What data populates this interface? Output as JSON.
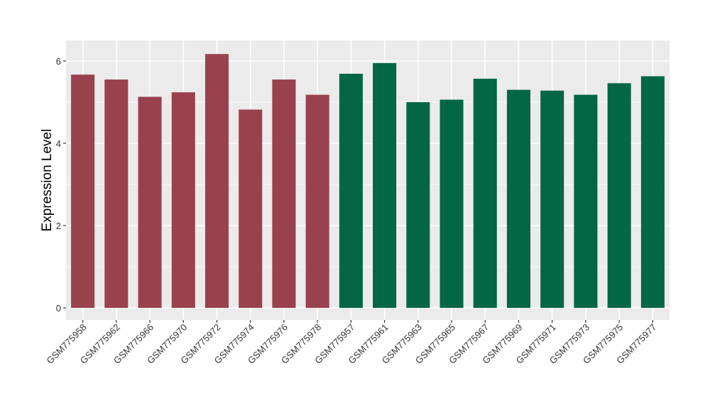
{
  "chart_data": {
    "type": "bar",
    "title": "",
    "xlabel": "",
    "ylabel": "Expression Level",
    "ylim": [
      -0.3,
      6.5
    ],
    "yticks": [
      0,
      2,
      4,
      6
    ],
    "grid": true,
    "legend": "none",
    "categories": [
      "GSM775958",
      "GSM775962",
      "GSM775966",
      "GSM775970",
      "GSM775972",
      "GSM775974",
      "GSM775976",
      "GSM775978",
      "GSM775957",
      "GSM775961",
      "GSM775963",
      "GSM775965",
      "GSM775967",
      "GSM775969",
      "GSM775971",
      "GSM775973",
      "GSM775975",
      "GSM775977"
    ],
    "values": [
      5.67,
      5.55,
      5.13,
      5.24,
      6.17,
      4.82,
      5.55,
      5.18,
      5.69,
      5.95,
      5.0,
      5.06,
      5.57,
      5.3,
      5.28,
      5.18,
      5.46,
      5.63
    ],
    "group": [
      0,
      0,
      0,
      0,
      0,
      0,
      0,
      0,
      1,
      1,
      1,
      1,
      1,
      1,
      1,
      1,
      1,
      1
    ],
    "colors": [
      "#9a414e",
      "#036645"
    ],
    "panel_background": "#ebebeb",
    "grid_color": "#ffffff"
  }
}
